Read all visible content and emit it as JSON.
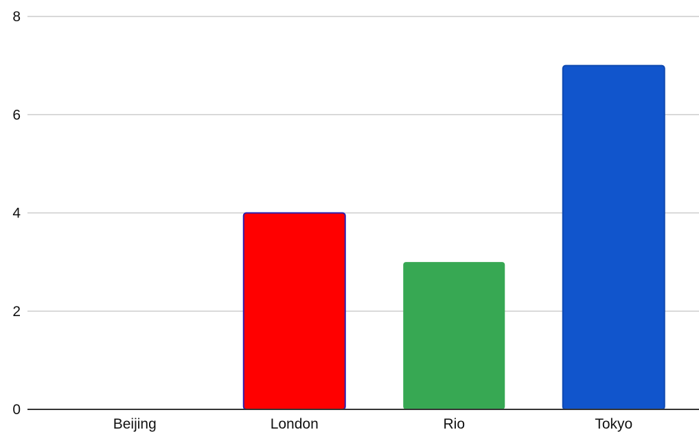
{
  "chart_data": {
    "type": "bar",
    "categories": [
      "Beijing",
      "London",
      "Rio",
      "Tokyo"
    ],
    "values": [
      0,
      4,
      3,
      7
    ],
    "colors": [
      "#ffffff",
      "#ff0000",
      "#37a853",
      "#1155cc"
    ],
    "stroke_colors": [
      "none",
      "#2a1fb0",
      "none",
      "#0f49b0"
    ],
    "title": "",
    "xlabel": "",
    "ylabel": "",
    "ylim": [
      0,
      8
    ],
    "yticks": [
      "0",
      "2",
      "4",
      "6",
      "8"
    ],
    "grid": true,
    "legend": "none"
  }
}
